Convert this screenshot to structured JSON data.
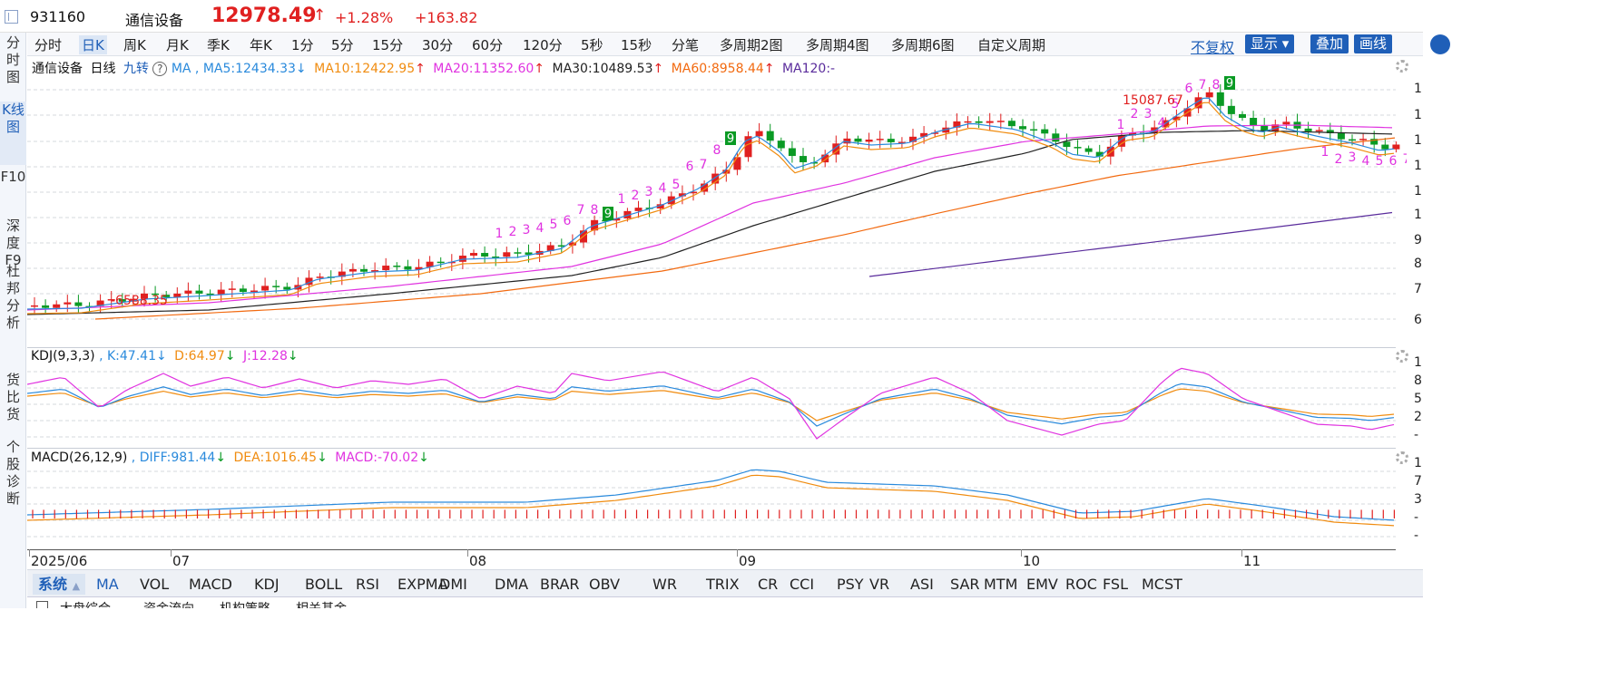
{
  "header": {
    "code": "931160",
    "name": "通信设备",
    "price": "12978.49",
    "arrow": "↑",
    "pct": "+1.28%",
    "change": "+163.82"
  },
  "left_tabs": [
    {
      "label": "分时图"
    },
    {
      "label": "K线图"
    },
    {
      "label": "F10"
    },
    {
      "label": "深度F9"
    },
    {
      "label": "杜邦分析"
    },
    {
      "label": "货比货"
    },
    {
      "label": "个股诊断"
    }
  ],
  "period_bar": {
    "items": [
      "分时",
      "日K",
      "周K",
      "月K",
      "季K",
      "年K",
      "1分",
      "5分",
      "15分",
      "30分",
      "60分",
      "120分",
      "5秒",
      "15秒",
      "分笔",
      "多周期2图",
      "多周期4图",
      "多周期6图",
      "自定义周期"
    ],
    "active": "日K",
    "fuquan": "不复权",
    "buttons": [
      "显示",
      "叠加",
      "画线"
    ]
  },
  "main_info": {
    "name": "通信设备",
    "period": "日线",
    "jiuzhuan": "九转",
    "help": "?",
    "ma": "MA",
    "ma5": "MA5:12434.33",
    "ma5_arrow": "↓",
    "ma10": "MA10:12422.95",
    "ma10_arrow": "↑",
    "ma20": "MA20:11352.60",
    "ma20_arrow": "↑",
    "ma30": "MA30:10489.53",
    "ma30_arrow": "↑",
    "ma60": "MA60:8958.44",
    "ma60_arrow": "↑",
    "ma120": "MA120:-",
    "low_label": "6588.35",
    "high_label": "15087.67"
  },
  "kdj_info": {
    "title": "KDJ(9,3,3)",
    "k": "K:47.41",
    "k_arrow": "↓",
    "d": "D:64.97",
    "d_arrow": "↓",
    "j": "J:12.28",
    "j_arrow": "↓"
  },
  "macd_info": {
    "title": "MACD(26,12,9)",
    "diff": "DIFF:981.44",
    "diff_arrow": "↓",
    "dea": "DEA:1016.45",
    "dea_arrow": "↓",
    "macd": "MACD:-70.02",
    "macd_arrow": "↓"
  },
  "dates": [
    "2025/06",
    "07",
    "08",
    "09",
    "10",
    "11"
  ],
  "indicator_bar": {
    "system": "系统",
    "items": [
      "MA",
      "VOL",
      "MACD",
      "KDJ",
      "BOLL",
      "RSI",
      "EXPMA",
      "DMI",
      "DMA",
      "BRAR",
      "OBV",
      "WR",
      "TRIX",
      "CR",
      "CCI",
      "PSY",
      "VR",
      "ASI",
      "SAR",
      "MTM",
      "EMV",
      "ROC",
      "FSL",
      "MCST"
    ],
    "active": "MA"
  },
  "bottom_strip": [
    "大盘综合",
    "资金流向",
    "机构策略",
    "相关基金"
  ],
  "y_axis_main": [
    "1",
    "1",
    "1",
    "1",
    "1",
    "1",
    "9",
    "8",
    "7",
    "6"
  ],
  "y_axis_kdj": [
    "1",
    "8",
    "5",
    "2",
    "-"
  ],
  "y_axis_macd": [
    "1",
    "7",
    "3",
    "-",
    "-"
  ],
  "colors": {
    "up": "#e02020",
    "down": "#0a9a24",
    "ma5": "#2a8adc",
    "ma10": "#f08c10",
    "ma20": "#e033e0",
    "ma30": "#222222",
    "ma60": "#f26a10",
    "ma120": "#5a2c9c",
    "k": "#2a8adc",
    "d": "#f08c10",
    "j": "#e033e0",
    "accent": "#1f5fb8"
  }
}
